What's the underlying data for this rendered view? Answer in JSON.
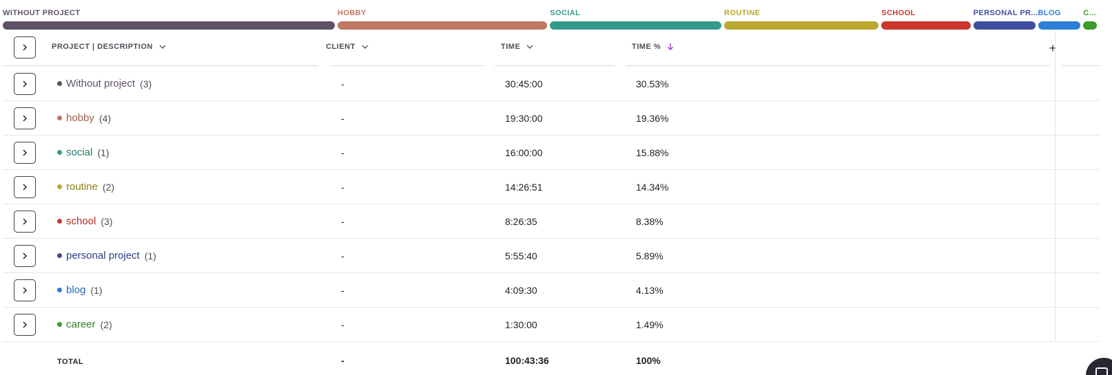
{
  "share_bar": [
    {
      "label": "WITHOUT PROJECT",
      "color": "#5f5168",
      "value": 30.53
    },
    {
      "label": "HOBBY",
      "color": "#bf7763",
      "value": 19.36
    },
    {
      "label": "SOCIAL",
      "color": "#33998a",
      "value": 15.88
    },
    {
      "label": "ROUTINE",
      "color": "#bba630",
      "value": 14.34
    },
    {
      "label": "SCHOOL",
      "color": "#c9372c",
      "value": 8.38
    },
    {
      "label": "PERSONAL PR...",
      "color": "#3f4d9e",
      "value": 5.89
    },
    {
      "label": "BLOG",
      "color": "#2d7ed6",
      "value": 4.13
    },
    {
      "label": "C...",
      "color": "#3b9b2b",
      "value": 1.49
    }
  ],
  "table": {
    "headers": {
      "project": "PROJECT | DESCRIPTION",
      "client": "CLIENT",
      "time": "TIME",
      "time_pct": "TIME %"
    },
    "add_column": "+",
    "rows": [
      {
        "name": "Without project",
        "count": "(3)",
        "client": "-",
        "time": "30:45:00",
        "pct": "30.53%",
        "color": "#5f5168"
      },
      {
        "name": "hobby",
        "count": "(4)",
        "client": "-",
        "time": "19:30:00",
        "pct": "19.36%",
        "color": "#a0604c"
      },
      {
        "name": "social",
        "count": "(1)",
        "client": "-",
        "time": "16:00:00",
        "pct": "15.88%",
        "color": "#1f7d70"
      },
      {
        "name": "routine",
        "count": "(2)",
        "client": "-",
        "time": "14:26:51",
        "pct": "14.34%",
        "color": "#8e7d12"
      },
      {
        "name": "school",
        "count": "(3)",
        "client": "-",
        "time": "8:26:35",
        "pct": "8.38%",
        "color": "#b32b20"
      },
      {
        "name": "personal project",
        "count": "(1)",
        "client": "-",
        "time": "5:55:40",
        "pct": "5.89%",
        "color": "#2f3b86"
      },
      {
        "name": "blog",
        "count": "(1)",
        "client": "-",
        "time": "4:09:30",
        "pct": "4.13%",
        "color": "#2368b8"
      },
      {
        "name": "career",
        "count": "(2)",
        "client": "-",
        "time": "1:30:00",
        "pct": "1.49%",
        "color": "#2f7f22"
      }
    ],
    "total": {
      "label": "TOTAL",
      "client": "-",
      "time": "100:43:36",
      "pct": "100%"
    }
  }
}
